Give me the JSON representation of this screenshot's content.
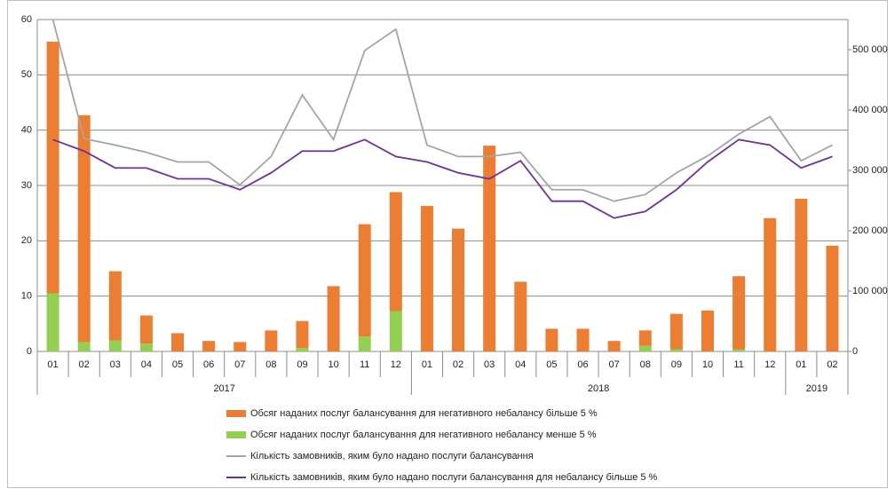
{
  "chart_data": {
    "type": "bar_line",
    "groups": [
      {
        "label": "2017",
        "months": [
          "01",
          "02",
          "03",
          "04",
          "05",
          "06",
          "07",
          "08",
          "09",
          "10",
          "11",
          "12"
        ]
      },
      {
        "label": "2018",
        "months": [
          "01",
          "02",
          "03",
          "04",
          "05",
          "06",
          "07",
          "08",
          "09",
          "10",
          "11",
          "12"
        ]
      },
      {
        "label": "2019",
        "months": [
          "01",
          "02"
        ]
      }
    ],
    "ylim": [
      0,
      60
    ],
    "yticks": [
      0,
      10,
      20,
      30,
      40,
      50,
      60
    ],
    "y2lim": [
      0,
      550000
    ],
    "y2ticks": [
      0,
      {
        "value": 100000,
        "label": "100 000"
      },
      {
        "value": 200000,
        "label": "200 000"
      },
      {
        "value": 300000,
        "label": "300 000"
      },
      {
        "value": 400000,
        "label": "400 000"
      },
      {
        "value": 500000,
        "label": "500 000"
      }
    ],
    "grid": true,
    "series": [
      {
        "name": "Обсяг наданих послуг балансування для негативного небалансу більше 5 %",
        "type": "bar",
        "color": "#ed7d31",
        "values": [
          45.5,
          41,
          12.5,
          5.1,
          3.3,
          1.9,
          1.7,
          3.8,
          4.9,
          11.8,
          20.3,
          21.5,
          26.3,
          22.2,
          37.2,
          12.6,
          4.1,
          4.1,
          1.9,
          2.8,
          6.4,
          7.4,
          13.2,
          24.1,
          27.6,
          19.1
        ]
      },
      {
        "name": "Обсяг наданих послуг балансування для негативного небалансу менше 5 %",
        "type": "bar",
        "color": "#92d050",
        "values": [
          10.5,
          1.7,
          2,
          1.4,
          0,
          0,
          0,
          0,
          0.6,
          0,
          2.7,
          7.3,
          0,
          0,
          0,
          0,
          0,
          0,
          0,
          1,
          0.4,
          0,
          0.4,
          0,
          0,
          0
        ]
      },
      {
        "name": "Кількість замовників, яким було надано послуги балансування",
        "type": "line",
        "axis": "y2",
        "color": "#a5a5a5",
        "values": [
          550000,
          352500,
          342000,
          330000,
          314000,
          314000,
          276000,
          323000,
          425000,
          351000,
          498500,
          534000,
          342000,
          323000,
          323000,
          330000,
          268000,
          268000,
          249000,
          260000,
          296000,
          324000,
          360000,
          389000,
          316000,
          342000
        ]
      },
      {
        "name": "Кількість замовників, яким було надано послуги балансування для небалансу більше 5 %",
        "type": "line",
        "axis": "y2",
        "color": "#7030a0",
        "values": [
          351000,
          332000,
          304000,
          304000,
          286000,
          286000,
          268000,
          296000,
          332000,
          332000,
          351000,
          323000,
          314000,
          296000,
          286000,
          316000,
          249000,
          249000,
          221000,
          232000,
          268000,
          314000,
          351000,
          342000,
          304000,
          323000
        ]
      }
    ]
  }
}
